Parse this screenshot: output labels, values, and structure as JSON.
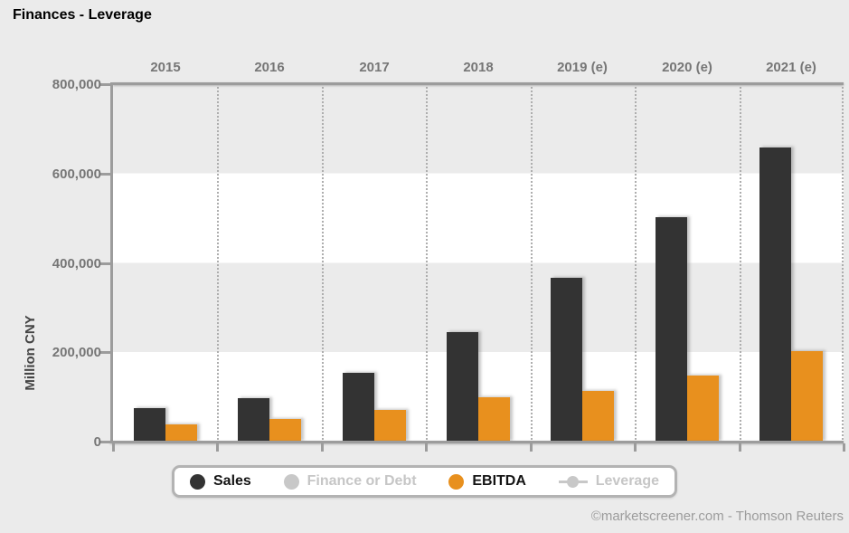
{
  "title": "Finances - Leverage",
  "attribution": "©marketscreener.com - Thomson Reuters",
  "colors": {
    "sales_bar": "#333333",
    "ebitda_bar": "#e8901e",
    "disabled_gray": "#c8c8c8",
    "axis_gray": "#9c9c9c",
    "background": "#ebebeb"
  },
  "chart_data": {
    "type": "bar",
    "title": "Finances - Leverage",
    "ylabel": "Million CNY",
    "ylim": [
      0,
      800000
    ],
    "ytick_labels": [
      "800,000",
      "600,000",
      "400,000",
      "200,000",
      "0"
    ],
    "ytick_values": [
      800000,
      600000,
      400000,
      200000,
      0
    ],
    "grid": "alternating horizontal bands, dotted vertical column separators",
    "legend_position": "bottom",
    "categories": [
      "2015",
      "2016",
      "2017",
      "2018",
      "2019 (e)",
      "2020 (e)",
      "2021 (e)"
    ],
    "series": [
      {
        "name": "Sales",
        "color": "#333333",
        "enabled": true,
        "values": [
          75000,
          98000,
          154000,
          246000,
          367000,
          503000,
          658000
        ]
      },
      {
        "name": "Finance or Debt",
        "color": "#c8c8c8",
        "enabled": false
      },
      {
        "name": "EBITDA",
        "color": "#e8901e",
        "enabled": true,
        "values": [
          39000,
          50000,
          70000,
          100000,
          113000,
          148000,
          203000
        ]
      },
      {
        "name": "Leverage",
        "color": "#c8c8c8",
        "enabled": false,
        "marker": "line-dot"
      }
    ]
  }
}
